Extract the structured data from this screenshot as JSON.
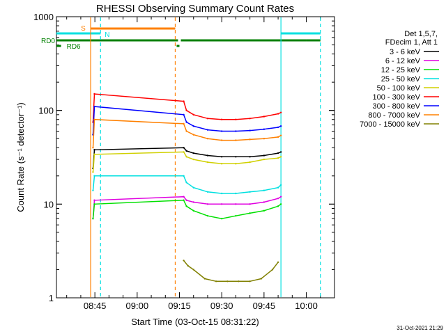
{
  "chart_data": {
    "type": "line",
    "title": "RHESSI Observing Summary Count Rates",
    "xlabel": "Start Time (03-Oct-15 08:31:22)",
    "ylabel": "Count Rate (s⁻¹ detector⁻¹)",
    "y_scale": "log",
    "ylim": [
      1,
      1000
    ],
    "xlim": [
      "08:31:22",
      "10:10:00"
    ],
    "x_ticks": [
      "08:45",
      "09:00",
      "09:15",
      "09:30",
      "09:45",
      "10:00"
    ],
    "y_ticks": [
      "1",
      "10",
      "100",
      "1000"
    ],
    "legend_position": "right",
    "legend_header": [
      "Det 1,5,7,",
      "FDecim 1, Att 1"
    ],
    "series": [
      {
        "name": "3 - 6 keV",
        "color": "#000000",
        "x": [
          "08:44:20",
          "08:44:50",
          "09:16:30",
          "09:17:30",
          "09:20",
          "09:25",
          "09:30",
          "09:35",
          "09:40",
          "09:45",
          "09:50",
          "09:51"
        ],
        "values": [
          24,
          38,
          40,
          37,
          35,
          33,
          32,
          32,
          32,
          33,
          35,
          36
        ]
      },
      {
        "name": "6 - 12 keV",
        "color": "#e000e0",
        "x": [
          "08:44:20",
          "08:44:50",
          "09:16:30",
          "09:17:30",
          "09:20",
          "09:25",
          "09:30",
          "09:35",
          "09:40",
          "09:45",
          "09:50",
          "09:51"
        ],
        "values": [
          7,
          11,
          12,
          11,
          10.5,
          10,
          10,
          10,
          10,
          10.5,
          11.5,
          12
        ]
      },
      {
        "name": "12 - 25 keV",
        "color": "#00e000",
        "x": [
          "08:44:20",
          "08:44:50",
          "09:16:30",
          "09:17:30",
          "09:20",
          "09:25",
          "09:30",
          "09:35",
          "09:40",
          "09:45",
          "09:50",
          "09:51"
        ],
        "values": [
          7,
          10,
          11,
          9.5,
          8.5,
          7.5,
          7,
          7.5,
          8,
          8.5,
          9.5,
          10
        ]
      },
      {
        "name": "25 - 50 keV",
        "color": "#00e0e0",
        "x": [
          "08:44:20",
          "08:44:50",
          "09:16:30",
          "09:17:30",
          "09:20",
          "09:25",
          "09:30",
          "09:35",
          "09:40",
          "09:45",
          "09:50",
          "09:51"
        ],
        "values": [
          14,
          20,
          20,
          17,
          15,
          13.5,
          13,
          13,
          13.5,
          14,
          15,
          16
        ]
      },
      {
        "name": "50 - 100 keV",
        "color": "#d0d000",
        "x": [
          "08:44:20",
          "08:44:50",
          "09:16:30",
          "09:17:30",
          "09:20",
          "09:25",
          "09:30",
          "09:35",
          "09:40",
          "09:45",
          "09:50",
          "09:51"
        ],
        "values": [
          22,
          34,
          36,
          32,
          30,
          28,
          27,
          27,
          28,
          30,
          31,
          32
        ]
      },
      {
        "name": "100 - 300 keV",
        "color": "#ff0000",
        "x": [
          "08:44:20",
          "08:44:50",
          "09:16:30",
          "09:17:30",
          "09:20",
          "09:25",
          "09:30",
          "09:35",
          "09:40",
          "09:45",
          "09:50",
          "09:51"
        ],
        "values": [
          75,
          150,
          125,
          100,
          90,
          82,
          80,
          80,
          82,
          86,
          92,
          95
        ]
      },
      {
        "name": "300 - 800 keV",
        "color": "#0000ff",
        "x": [
          "08:44:20",
          "08:44:50",
          "09:16:30",
          "09:17:30",
          "09:20",
          "09:25",
          "09:30",
          "09:35",
          "09:40",
          "09:45",
          "09:50",
          "09:51"
        ],
        "values": [
          55,
          110,
          90,
          75,
          68,
          62,
          60,
          60,
          61,
          63,
          66,
          68
        ]
      },
      {
        "name": "800 - 7000 keV",
        "color": "#ff8000",
        "x": [
          "08:44:20",
          "08:44:50",
          "09:16:30",
          "09:17:30",
          "09:20",
          "09:25",
          "09:30",
          "09:35",
          "09:40",
          "09:45",
          "09:50",
          "09:51"
        ],
        "values": [
          40,
          80,
          72,
          60,
          55,
          50,
          48,
          48,
          49,
          50,
          52,
          54
        ]
      },
      {
        "name": "7000 - 15000 keV",
        "color": "#808000",
        "x": [
          "09:16:30",
          "09:18",
          "09:20",
          "09:24",
          "09:28",
          "09:32",
          "09:36",
          "09:40",
          "09:44",
          "09:48",
          "09:50"
        ],
        "values": [
          2.5,
          2.2,
          2.0,
          1.6,
          1.5,
          1.5,
          1.5,
          1.5,
          1.6,
          2.0,
          2.4
        ]
      }
    ],
    "vertical_markers": [
      {
        "time": "08:43:30",
        "style": "solid",
        "color": "#ff8000"
      },
      {
        "time": "08:47:00",
        "style": "dashed",
        "color": "#00e0e0"
      },
      {
        "time": "09:13:30",
        "style": "dashed",
        "color": "#ff8000"
      },
      {
        "time": "09:51:00",
        "style": "solid",
        "color": "#00e0e0"
      },
      {
        "time": "10:05:00",
        "style": "dashed",
        "color": "#00e0e0"
      }
    ],
    "flag_bars": [
      {
        "label": "S",
        "color": "#ff8000",
        "segments": [
          [
            "08:43:30",
            "09:13:30"
          ]
        ]
      },
      {
        "label": "N",
        "color": "#00e0e0",
        "segments": [
          [
            "08:31:22",
            "08:47:00"
          ],
          [
            "09:51:00",
            "10:05:00"
          ]
        ]
      },
      {
        "label": "RD0",
        "color": "#008000",
        "segments": [
          [
            "08:31:22",
            "09:14:30"
          ],
          [
            "09:15:30",
            "10:00:00"
          ],
          [
            "10:00:00",
            "10:05:00"
          ]
        ]
      },
      {
        "label": "RD6",
        "color": "#008000",
        "segments": [
          [
            "08:31:22",
            "08:33:00"
          ],
          [
            "09:14:00",
            "09:15:00"
          ]
        ]
      }
    ],
    "footer_date": "31-Oct-2021 21:29"
  }
}
